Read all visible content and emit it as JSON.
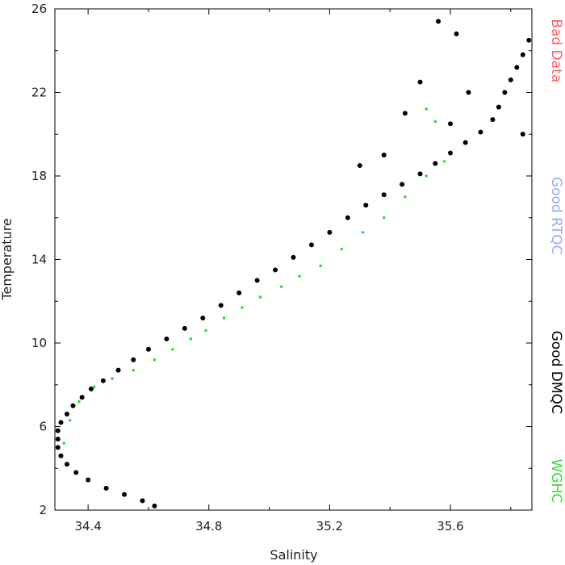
{
  "chart_data": {
    "type": "scatter",
    "title": "",
    "xlabel": "Salinity",
    "ylabel": "Temperature",
    "xlim": [
      34.29,
      35.87
    ],
    "ylim": [
      2,
      26
    ],
    "x_ticks": [
      34.4,
      34.8,
      35.2,
      35.6
    ],
    "x_tick_labels": [
      "34.4",
      "34.8",
      "35.2",
      "35.6"
    ],
    "y_ticks": [
      2,
      6,
      10,
      14,
      18,
      22,
      26
    ],
    "y_tick_labels": [
      "2",
      "6",
      "10",
      "14",
      "18",
      "22",
      "26"
    ],
    "grid": false,
    "legend": {
      "placement": "right, rotated vertical text",
      "entries": [
        {
          "label": "Bad Data",
          "color": "#ff6060"
        },
        {
          "label": "Good RTQC",
          "color": "#9aa6ff"
        },
        {
          "label": "Good DMQC",
          "color": "#000000"
        },
        {
          "label": "WGHC",
          "color": "#33dd33"
        }
      ]
    },
    "series": [
      {
        "name": "Good DMQC",
        "color": "#000000",
        "marker": "filled circle",
        "points": [
          [
            34.62,
            2.2
          ],
          [
            34.58,
            2.45
          ],
          [
            34.52,
            2.75
          ],
          [
            34.46,
            3.05
          ],
          [
            34.4,
            3.45
          ],
          [
            34.36,
            3.8
          ],
          [
            34.33,
            4.2
          ],
          [
            34.31,
            4.6
          ],
          [
            34.3,
            5.0
          ],
          [
            34.3,
            5.4
          ],
          [
            34.3,
            5.8
          ],
          [
            34.31,
            6.2
          ],
          [
            34.33,
            6.6
          ],
          [
            34.35,
            7.0
          ],
          [
            34.38,
            7.4
          ],
          [
            34.41,
            7.8
          ],
          [
            34.45,
            8.2
          ],
          [
            34.5,
            8.7
          ],
          [
            34.55,
            9.2
          ],
          [
            34.6,
            9.7
          ],
          [
            34.66,
            10.2
          ],
          [
            34.72,
            10.7
          ],
          [
            34.78,
            11.2
          ],
          [
            34.84,
            11.8
          ],
          [
            34.9,
            12.4
          ],
          [
            34.96,
            13.0
          ],
          [
            35.02,
            13.5
          ],
          [
            35.08,
            14.1
          ],
          [
            35.14,
            14.7
          ],
          [
            35.2,
            15.3
          ],
          [
            35.26,
            16.0
          ],
          [
            35.32,
            16.6
          ],
          [
            35.38,
            17.1
          ],
          [
            35.44,
            17.6
          ],
          [
            35.5,
            18.1
          ],
          [
            35.55,
            18.6
          ],
          [
            35.6,
            19.1
          ],
          [
            35.65,
            19.6
          ],
          [
            35.7,
            20.1
          ],
          [
            35.74,
            20.7
          ],
          [
            35.76,
            21.3
          ],
          [
            35.78,
            22.0
          ],
          [
            35.8,
            22.6
          ],
          [
            35.82,
            23.2
          ],
          [
            35.84,
            23.8
          ],
          [
            35.86,
            24.5
          ],
          [
            35.62,
            24.8
          ],
          [
            35.56,
            25.4
          ],
          [
            35.5,
            22.5
          ],
          [
            35.45,
            21.0
          ],
          [
            35.38,
            19.0
          ],
          [
            35.3,
            18.5
          ],
          [
            35.6,
            20.5
          ],
          [
            35.66,
            22.0
          ],
          [
            35.84,
            20.0
          ]
        ]
      },
      {
        "name": "WGHC",
        "color": "#33dd33",
        "marker": "small dot",
        "points": [
          [
            34.32,
            5.2
          ],
          [
            34.34,
            6.3
          ],
          [
            34.37,
            7.2
          ],
          [
            34.42,
            7.9
          ],
          [
            34.48,
            8.3
          ],
          [
            34.55,
            8.7
          ],
          [
            34.62,
            9.2
          ],
          [
            34.68,
            9.7
          ],
          [
            34.74,
            10.2
          ],
          [
            34.79,
            10.6
          ],
          [
            34.85,
            11.2
          ],
          [
            34.91,
            11.7
          ],
          [
            34.97,
            12.2
          ],
          [
            35.04,
            12.7
          ],
          [
            35.1,
            13.2
          ],
          [
            35.17,
            13.7
          ],
          [
            35.24,
            14.5
          ],
          [
            35.31,
            15.3
          ],
          [
            35.38,
            16.0
          ],
          [
            35.45,
            17.0
          ],
          [
            35.52,
            18.0
          ],
          [
            35.58,
            18.7
          ],
          [
            35.55,
            20.6
          ],
          [
            35.52,
            21.2
          ]
        ]
      }
    ]
  }
}
